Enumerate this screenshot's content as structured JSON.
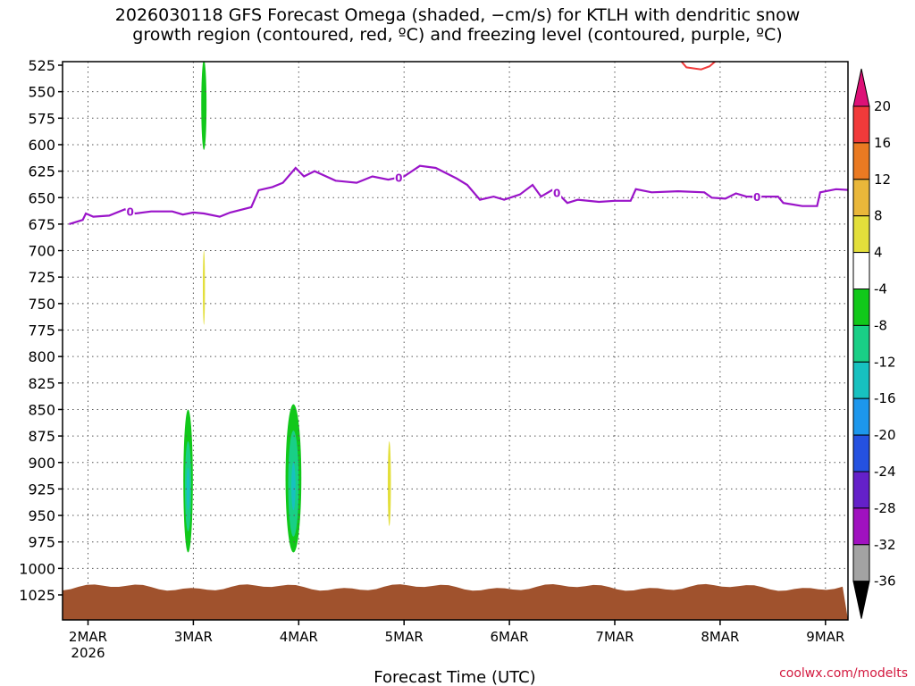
{
  "chart_data": {
    "type": "heatmap",
    "title": "2026030118 GFS Forecast Omega (shaded, −cm/s) for KTLH with dendritic snow\ngrowth region (contoured, red, ºC) and freezing level (contoured, purple, ºC)",
    "xlabel": "Forecast Time (UTC)",
    "ylabel": "",
    "x_ticks": [
      {
        "label": "2MAR",
        "sub": "2026",
        "time": 0
      },
      {
        "label": "3MAR",
        "time": 1
      },
      {
        "label": "4MAR",
        "time": 2
      },
      {
        "label": "5MAR",
        "time": 3
      },
      {
        "label": "6MAR",
        "time": 4
      },
      {
        "label": "7MAR",
        "time": 5
      },
      {
        "label": "8MAR",
        "time": 6
      },
      {
        "label": "9MAR",
        "time": 7
      }
    ],
    "xlim": [
      -0.18,
      7.25
    ],
    "y_levels": [
      525,
      550,
      575,
      600,
      625,
      650,
      675,
      700,
      725,
      750,
      775,
      800,
      825,
      850,
      875,
      900,
      925,
      950,
      975,
      1000,
      1025
    ],
    "colorbar": {
      "levels": [
        20,
        16,
        12,
        8,
        4,
        -4,
        -8,
        -12,
        -16,
        -20,
        -24,
        -28,
        -32,
        -36
      ],
      "colors": [
        "#dd1177",
        "#f13a3a",
        "#ea7a22",
        "#e9b73a",
        "#e3df3b",
        "#ffffff",
        "#11c81a",
        "#19cf86",
        "#17c1c0",
        "#1d97ec",
        "#2551e0",
        "#6420c9",
        "#a011c0",
        "#a3a3a3",
        "#000000"
      ]
    },
    "freezing_level": {
      "label": "0",
      "color": "#9a14c9",
      "points": [
        [
          -0.18,
          675
        ],
        [
          -0.05,
          671
        ],
        [
          -0.02,
          665
        ],
        [
          0.05,
          668
        ],
        [
          0.2,
          667
        ],
        [
          0.35,
          661
        ],
        [
          0.45,
          665
        ],
        [
          0.6,
          663
        ],
        [
          0.8,
          663
        ],
        [
          0.9,
          666
        ],
        [
          1.0,
          664
        ],
        [
          1.1,
          665
        ],
        [
          1.25,
          668
        ],
        [
          1.35,
          664
        ],
        [
          1.55,
          659
        ],
        [
          1.62,
          643
        ],
        [
          1.75,
          640
        ],
        [
          1.85,
          636
        ],
        [
          1.97,
          622
        ],
        [
          2.05,
          630
        ],
        [
          2.15,
          625
        ],
        [
          2.35,
          634
        ],
        [
          2.55,
          636
        ],
        [
          2.7,
          630
        ],
        [
          2.85,
          633
        ],
        [
          3.0,
          630
        ],
        [
          3.15,
          620
        ],
        [
          3.3,
          622
        ],
        [
          3.5,
          632
        ],
        [
          3.6,
          638
        ],
        [
          3.72,
          652
        ],
        [
          3.85,
          649
        ],
        [
          3.95,
          652
        ],
        [
          4.1,
          647
        ],
        [
          4.22,
          638
        ],
        [
          4.3,
          649
        ],
        [
          4.42,
          642
        ],
        [
          4.55,
          655
        ],
        [
          4.65,
          652
        ],
        [
          4.85,
          654
        ],
        [
          5.0,
          653
        ],
        [
          5.15,
          653
        ],
        [
          5.2,
          642
        ],
        [
          5.35,
          645
        ],
        [
          5.6,
          644
        ],
        [
          5.85,
          645
        ],
        [
          5.92,
          650
        ],
        [
          6.05,
          651
        ],
        [
          6.15,
          646
        ],
        [
          6.25,
          649
        ],
        [
          6.4,
          649
        ],
        [
          6.55,
          649
        ],
        [
          6.6,
          655
        ],
        [
          6.78,
          658
        ],
        [
          6.92,
          658
        ],
        [
          6.95,
          645
        ],
        [
          7.1,
          642
        ],
        [
          7.25,
          643
        ]
      ],
      "label_times": [
        0.4,
        2.95,
        4.45,
        6.35
      ]
    },
    "dgz_contour": {
      "color": "#f13a3a",
      "points": [
        [
          5.62,
          520
        ],
        [
          5.68,
          527
        ],
        [
          5.82,
          529
        ],
        [
          5.9,
          526
        ],
        [
          5.97,
          520
        ]
      ]
    },
    "omega_regions": [
      {
        "t": 0.02,
        "top": 650,
        "bottom": 770,
        "w": 0.055,
        "level": 4
      },
      {
        "t": 0.22,
        "top": 630,
        "bottom": 950,
        "w": 0.06,
        "level": 4
      },
      {
        "t": 0.28,
        "top": 650,
        "bottom": 845,
        "w": 0.03,
        "level": -4
      },
      {
        "t": 0.32,
        "top": 580,
        "bottom": 930,
        "w": 0.06,
        "level": 4
      },
      {
        "t": 0.61,
        "top": 520,
        "bottom": 545,
        "w": 0.04,
        "level": 4
      },
      {
        "t": 1.08,
        "top": 520,
        "bottom": 610,
        "w": 0.08,
        "level": 4
      },
      {
        "t": 1.1,
        "top": 520,
        "bottom": 605,
        "w": 0.05,
        "level": -8
      },
      {
        "t": 1.1,
        "top": 690,
        "bottom": 830,
        "w": 0.05,
        "level": 4
      },
      {
        "t": 1.1,
        "top": 700,
        "bottom": 770,
        "w": 0.02,
        "level": 8
      },
      {
        "t": 0.95,
        "top": 818,
        "bottom": 995,
        "w": 0.14,
        "level": -4
      },
      {
        "t": 0.95,
        "top": 850,
        "bottom": 985,
        "w": 0.09,
        "level": -8
      },
      {
        "t": 0.95,
        "top": 880,
        "bottom": 965,
        "w": 0.06,
        "level": -12
      },
      {
        "t": 0.95,
        "top": 905,
        "bottom": 945,
        "w": 0.03,
        "level": -16
      },
      {
        "t": 1.12,
        "top": 895,
        "bottom": 960,
        "w": 0.03,
        "level": -4
      },
      {
        "t": 2.02,
        "top": 520,
        "bottom": 560,
        "w": 0.025,
        "level": -4
      },
      {
        "t": 2.08,
        "top": 570,
        "bottom": 615,
        "w": 0.03,
        "level": 4
      },
      {
        "t": 2.02,
        "top": 640,
        "bottom": 770,
        "w": 0.06,
        "level": 4
      },
      {
        "t": 2.02,
        "top": 650,
        "bottom": 720,
        "w": 0.02,
        "level": -4
      },
      {
        "t": 1.95,
        "top": 818,
        "bottom": 995,
        "w": 0.2,
        "level": -4
      },
      {
        "t": 1.95,
        "top": 845,
        "bottom": 985,
        "w": 0.15,
        "level": -8
      },
      {
        "t": 1.95,
        "top": 870,
        "bottom": 970,
        "w": 0.1,
        "level": -12
      },
      {
        "t": 1.95,
        "top": 900,
        "bottom": 945,
        "w": 0.04,
        "level": -16
      },
      {
        "t": 2.15,
        "top": 855,
        "bottom": 985,
        "w": 0.04,
        "level": -4
      },
      {
        "t": 2.86,
        "top": 815,
        "bottom": 1000,
        "w": 0.08,
        "level": 4
      },
      {
        "t": 2.86,
        "top": 880,
        "bottom": 960,
        "w": 0.03,
        "level": 8
      },
      {
        "t": 2.98,
        "top": 750,
        "bottom": 780,
        "w": 0.02,
        "level": -4
      },
      {
        "t": 3.03,
        "top": 760,
        "bottom": 910,
        "w": 0.06,
        "level": -4
      },
      {
        "t": 2.85,
        "top": 835,
        "bottom": 842,
        "w": 0.02,
        "level": -4
      },
      {
        "t": 3.01,
        "top": 842,
        "bottom": 848,
        "w": 0.02,
        "level": -4
      },
      {
        "t": 3.28,
        "top": 665,
        "bottom": 672,
        "w": 0.02,
        "level": 4
      },
      {
        "t": 3.78,
        "top": 893,
        "bottom": 965,
        "w": 0.2,
        "level": 4
      },
      {
        "t": 4.25,
        "top": 680,
        "bottom": 730,
        "w": 0.02,
        "level": 4
      },
      {
        "t": 4.78,
        "top": 893,
        "bottom": 975,
        "w": 0.16,
        "level": 4
      },
      {
        "t": 4.8,
        "top": 912,
        "bottom": 952,
        "w": 0.1,
        "level": 4
      },
      {
        "t": 5.7,
        "top": 877,
        "bottom": 978,
        "w": 0.22,
        "level": 4
      },
      {
        "t": 6.7,
        "top": 880,
        "bottom": 965,
        "w": 0.2,
        "level": 4
      },
      {
        "t": 7.02,
        "top": 712,
        "bottom": 770,
        "w": 0.1,
        "level": -4
      }
    ],
    "terrain": {
      "color": "#a0522d",
      "top_hpa": 1018
    }
  },
  "watermark": "coolwx.com/modelts"
}
